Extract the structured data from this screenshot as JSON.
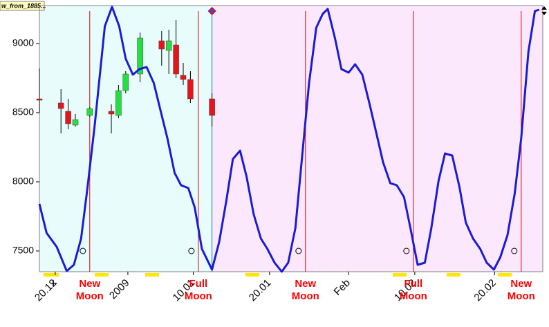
{
  "chart_data": {
    "type": "candlestick",
    "tag": "w_from_1885...",
    "xlim": [
      0,
      70
    ],
    "ylim": [
      7350,
      9275
    ],
    "yticks": [
      7500,
      8000,
      8500,
      9000
    ],
    "xticks": [
      {
        "value": 2.2,
        "label": "20.12"
      },
      {
        "value": 12.3,
        "label": "2009"
      },
      {
        "value": 21.4,
        "label": "10.01"
      },
      {
        "value": 32,
        "label": "20.01"
      },
      {
        "value": 43,
        "label": "Feb"
      },
      {
        "value": 52.2,
        "label": "10.02"
      },
      {
        "value": 63.3,
        "label": "20.02"
      }
    ],
    "forecast_start": 24,
    "history_color": "#e8fcfc",
    "forecast_color": "#fce8fc",
    "candles": {
      "up_color": "#22e040",
      "down_color": "#e8131b",
      "x": [
        0,
        3,
        4,
        5,
        7,
        10,
        11,
        12,
        14,
        17,
        18,
        19,
        20,
        21,
        24
      ],
      "open": [
        8600,
        8570,
        8510,
        8410,
        8480,
        8510,
        8480,
        8660,
        8780,
        9020,
        8950,
        8990,
        8770,
        8740,
        8600
      ],
      "high": [
        8820,
        8670,
        8600,
        8490,
        8540,
        8560,
        8700,
        8800,
        9080,
        9090,
        9100,
        9170,
        8860,
        8800,
        8640
      ],
      "low": [
        8500,
        8350,
        8380,
        8400,
        8470,
        8350,
        8460,
        8640,
        8720,
        8840,
        8780,
        8750,
        8700,
        8570,
        8400
      ],
      "close": [
        8590,
        8530,
        8420,
        8450,
        8530,
        8490,
        8660,
        8780,
        9040,
        8960,
        9020,
        8780,
        8740,
        8600,
        8480
      ]
    },
    "line": {
      "color": "#1a1ad8",
      "x": [
        0,
        1,
        2.4,
        3.8,
        4.8,
        5.8,
        6.7,
        7.7,
        9.1,
        10.1,
        11.1,
        12,
        13,
        13.9,
        14.9,
        15.9,
        16.8,
        17.8,
        18.8,
        19.7,
        20.7,
        21.6,
        22.6,
        24,
        25,
        26,
        26.9,
        27.9,
        28.8,
        29.8,
        30.8,
        31.7,
        32.7,
        33.7,
        34.6,
        35.6,
        36.5,
        37.5,
        38.5,
        39.4,
        40.1,
        41.1,
        42,
        43,
        43.9,
        44.9,
        45.9,
        46.8,
        47.8,
        48.8,
        49.7,
        50.7,
        51.6,
        52.6,
        53.6,
        54.5,
        55.5,
        56.4,
        57.4,
        58.4,
        59.3,
        60.3,
        61.3,
        62.2,
        63.2,
        64.1,
        65.1,
        66.1,
        67,
        68,
        68.9,
        69.5
      ],
      "values": [
        7840,
        7630,
        7530,
        7355,
        7400,
        7590,
        7965,
        8415,
        9125,
        9265,
        9125,
        8890,
        8775,
        8815,
        8830,
        8715,
        8525,
        8315,
        8065,
        7975,
        7955,
        7815,
        7515,
        7365,
        7565,
        7865,
        8165,
        8225,
        8040,
        7765,
        7590,
        7515,
        7415,
        7350,
        7415,
        7665,
        8165,
        8715,
        9115,
        9215,
        9250,
        9040,
        8815,
        8790,
        8850,
        8775,
        8565,
        8365,
        8140,
        7990,
        7975,
        7890,
        7665,
        7400,
        7415,
        7665,
        8005,
        8205,
        8190,
        7965,
        7705,
        7590,
        7515,
        7415,
        7365,
        7455,
        7615,
        7915,
        8315,
        8940,
        9235,
        9245
      ]
    },
    "moon_phases": {
      "color": "#e00000",
      "x": [
        7,
        22.1,
        37,
        52,
        67
      ],
      "labels": [
        [
          "New",
          "Moon"
        ],
        [
          "Full",
          "Moon"
        ],
        [
          "New",
          "Moon"
        ],
        [
          "Full",
          "Moon"
        ],
        [
          "New",
          "Moon"
        ]
      ]
    }
  }
}
